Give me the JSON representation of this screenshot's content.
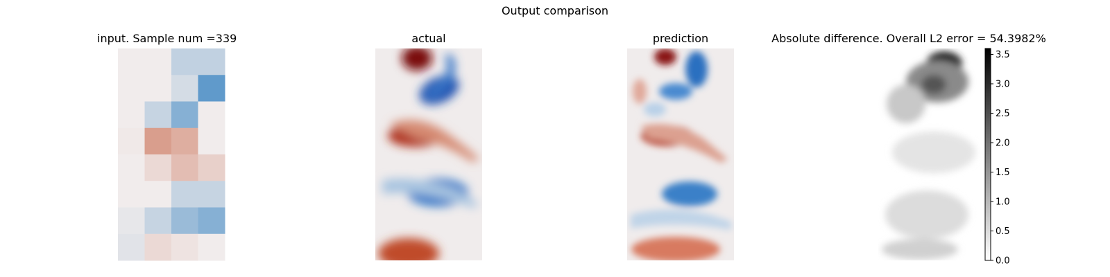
{
  "figure": {
    "suptitle": "Output comparison"
  },
  "chart_data": [
    {
      "type": "heatmap",
      "title": "input. Sample num =339",
      "colormap": "diverging",
      "colors": {
        "negative": "#2f7fc0",
        "neutral": "#f1ecec",
        "positive": "#c1502e"
      },
      "grid_rows": 8,
      "grid_cols": 4,
      "values": [
        [
          0.0,
          0.0,
          -0.25,
          -0.25
        ],
        [
          0.0,
          0.0,
          -0.15,
          -0.75
        ],
        [
          0.0,
          -0.22,
          -0.55,
          0.0
        ],
        [
          0.02,
          0.5,
          0.4,
          0.0
        ],
        [
          0.0,
          0.12,
          0.3,
          0.18
        ],
        [
          0.0,
          0.0,
          -0.22,
          -0.22
        ],
        [
          -0.05,
          -0.22,
          -0.45,
          -0.55
        ],
        [
          -0.08,
          0.12,
          0.06,
          0.0
        ]
      ]
    },
    {
      "type": "heatmap",
      "title": "actual",
      "colormap": "diverging",
      "colors": {
        "negative": "#1f5fb8",
        "neutral": "#f0ecec",
        "positive": "#b0301a"
      }
    },
    {
      "type": "heatmap",
      "title": "prediction",
      "colormap": "diverging",
      "colors": {
        "negative": "#2a70c0",
        "neutral": "#f0ecec",
        "positive": "#b83a20"
      }
    },
    {
      "type": "heatmap",
      "title": "Absolute difference. Overall L2 error = 54.3982%",
      "colormap": "gray_r",
      "colorbar": {
        "range": [
          0.0,
          3.6
        ],
        "ticks": [
          "0.0",
          "0.5",
          "1.0",
          "1.5",
          "2.0",
          "2.5",
          "3.0",
          "3.5"
        ],
        "tick_values": [
          0.0,
          0.5,
          1.0,
          1.5,
          2.0,
          2.5,
          3.0,
          3.5
        ]
      }
    }
  ]
}
